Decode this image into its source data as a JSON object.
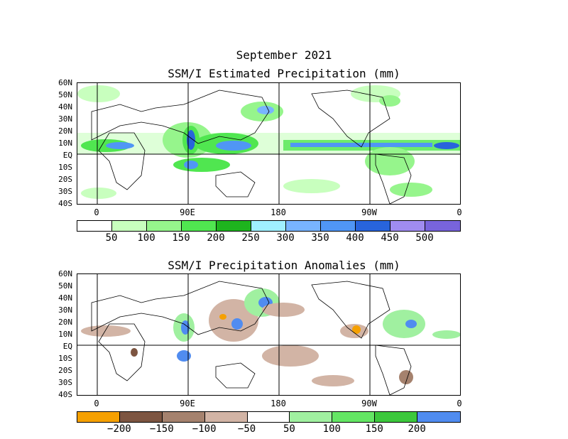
{
  "title_line1": "September 2021",
  "panel1": {
    "title": "SSM/I Estimated Precipitation (mm)",
    "lat_labels": [
      "60N",
      "50N",
      "40N",
      "30N",
      "20N",
      "10N",
      "EQ",
      "10S",
      "20S",
      "30S",
      "40S"
    ],
    "lon_labels": [
      "0",
      "90E",
      "180",
      "90W",
      "0"
    ],
    "colorbar_colors": [
      "#ffffff",
      "#c8ffbe",
      "#96f58c",
      "#50e650",
      "#1eb41e",
      "#a0f0ff",
      "#78b4ff",
      "#5096f5",
      "#2864dc",
      "#a08cf0",
      "#7864dc"
    ],
    "colorbar_labels": [
      "50",
      "100",
      "150",
      "200",
      "250",
      "300",
      "350",
      "400",
      "450",
      "500"
    ]
  },
  "panel2": {
    "title": "SSM/I Precipitation Anomalies (mm)",
    "lat_labels": [
      "60N",
      "50N",
      "40N",
      "30N",
      "20N",
      "10N",
      "EQ",
      "10S",
      "20S",
      "30S",
      "40S"
    ],
    "lon_labels": [
      "0",
      "90E",
      "180",
      "90W",
      "0"
    ],
    "colorbar_colors": [
      "#f5a000",
      "#7d5541",
      "#a5826e",
      "#d2b4a5",
      "#ffffff",
      "#a0f0a0",
      "#64e664",
      "#3cc83c",
      "#508cf0"
    ],
    "colorbar_labels": [
      "−200",
      "−150",
      "−100",
      "−50",
      "50",
      "100",
      "150",
      "200"
    ]
  }
}
